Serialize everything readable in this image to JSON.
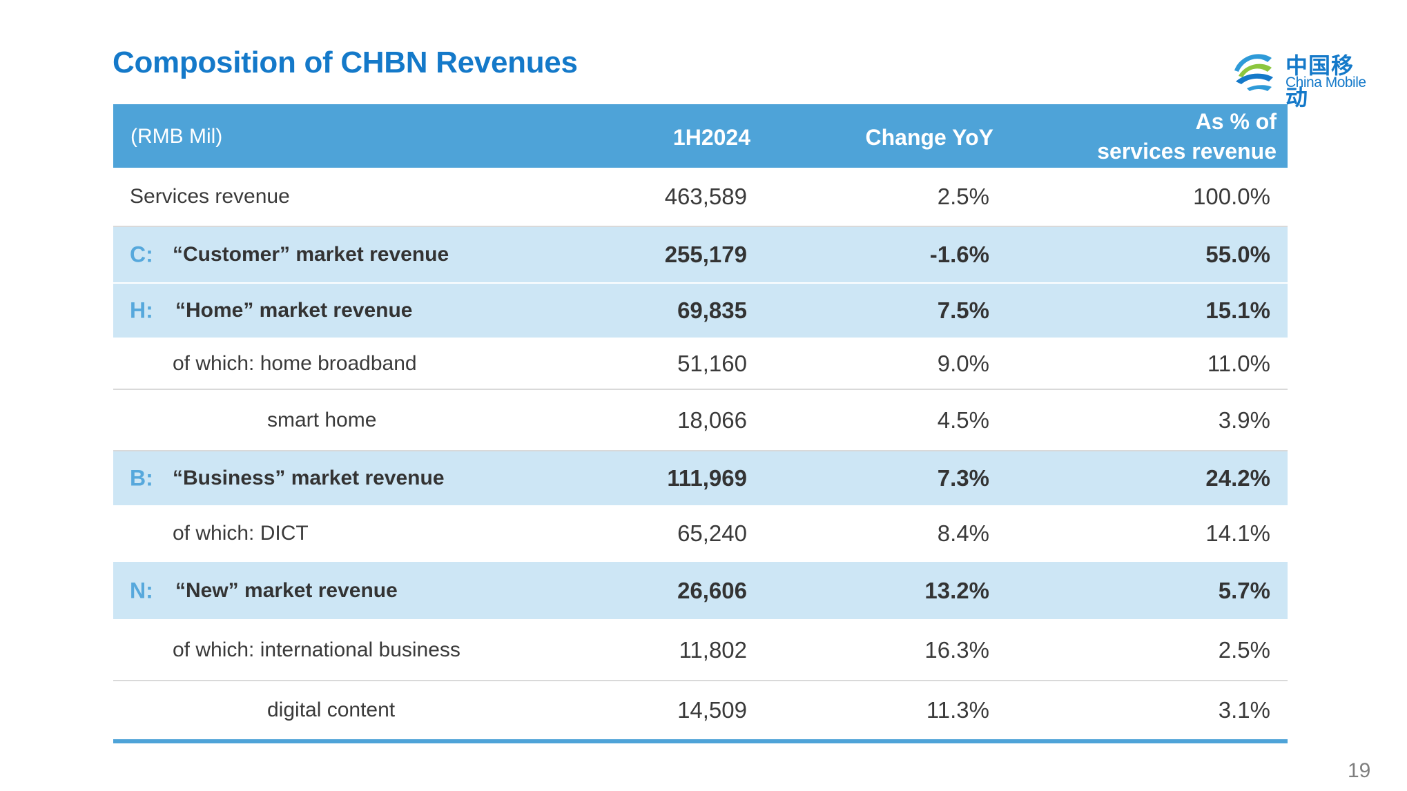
{
  "title": "Composition of CHBN Revenues",
  "logo": {
    "cn": "中国移动",
    "en": "China Mobile"
  },
  "colors": {
    "accent": "#1479c9",
    "header_bg": "#4ea3d8",
    "highlight_bg": "#cde6f5",
    "letter": "#56a8dc"
  },
  "header": {
    "unit": "(RMB Mil)",
    "col1": "1H2024",
    "col2": "Change YoY",
    "col3_line1": "As % of",
    "col3_line2": "services revenue"
  },
  "rows": [
    {
      "letter": "",
      "label": "Services revenue",
      "v1": "463,589",
      "v2": "2.5%",
      "v3": "100.0%"
    },
    {
      "letter": "C:",
      "label": "“Customer” market revenue",
      "v1": "255,179",
      "v2": "-1.6%",
      "v3": "55.0%"
    },
    {
      "letter": "H:",
      "label": "“Home” market revenue",
      "v1": "69,835",
      "v2": "7.5%",
      "v3": "15.1%"
    },
    {
      "letter": "",
      "label": "of which: home broadband",
      "v1": "51,160",
      "v2": "9.0%",
      "v3": "11.0%"
    },
    {
      "letter": "",
      "label": "smart home",
      "v1": "18,066",
      "v2": "4.5%",
      "v3": "3.9%"
    },
    {
      "letter": "B:",
      "label": "“Business” market revenue",
      "v1": "111,969",
      "v2": "7.3%",
      "v3": "24.2%"
    },
    {
      "letter": "",
      "label": "of which: DICT",
      "v1": "65,240",
      "v2": "8.4%",
      "v3": "14.1%"
    },
    {
      "letter": "N:",
      "label": "“New” market revenue",
      "v1": "26,606",
      "v2": "13.2%",
      "v3": "5.7%"
    },
    {
      "letter": "",
      "label": "of which: international business",
      "v1": "11,802",
      "v2": "16.3%",
      "v3": "2.5%"
    },
    {
      "letter": "",
      "label": "digital content",
      "v1": "14,509",
      "v2": "11.3%",
      "v3": "3.1%"
    }
  ],
  "page_number": "19"
}
